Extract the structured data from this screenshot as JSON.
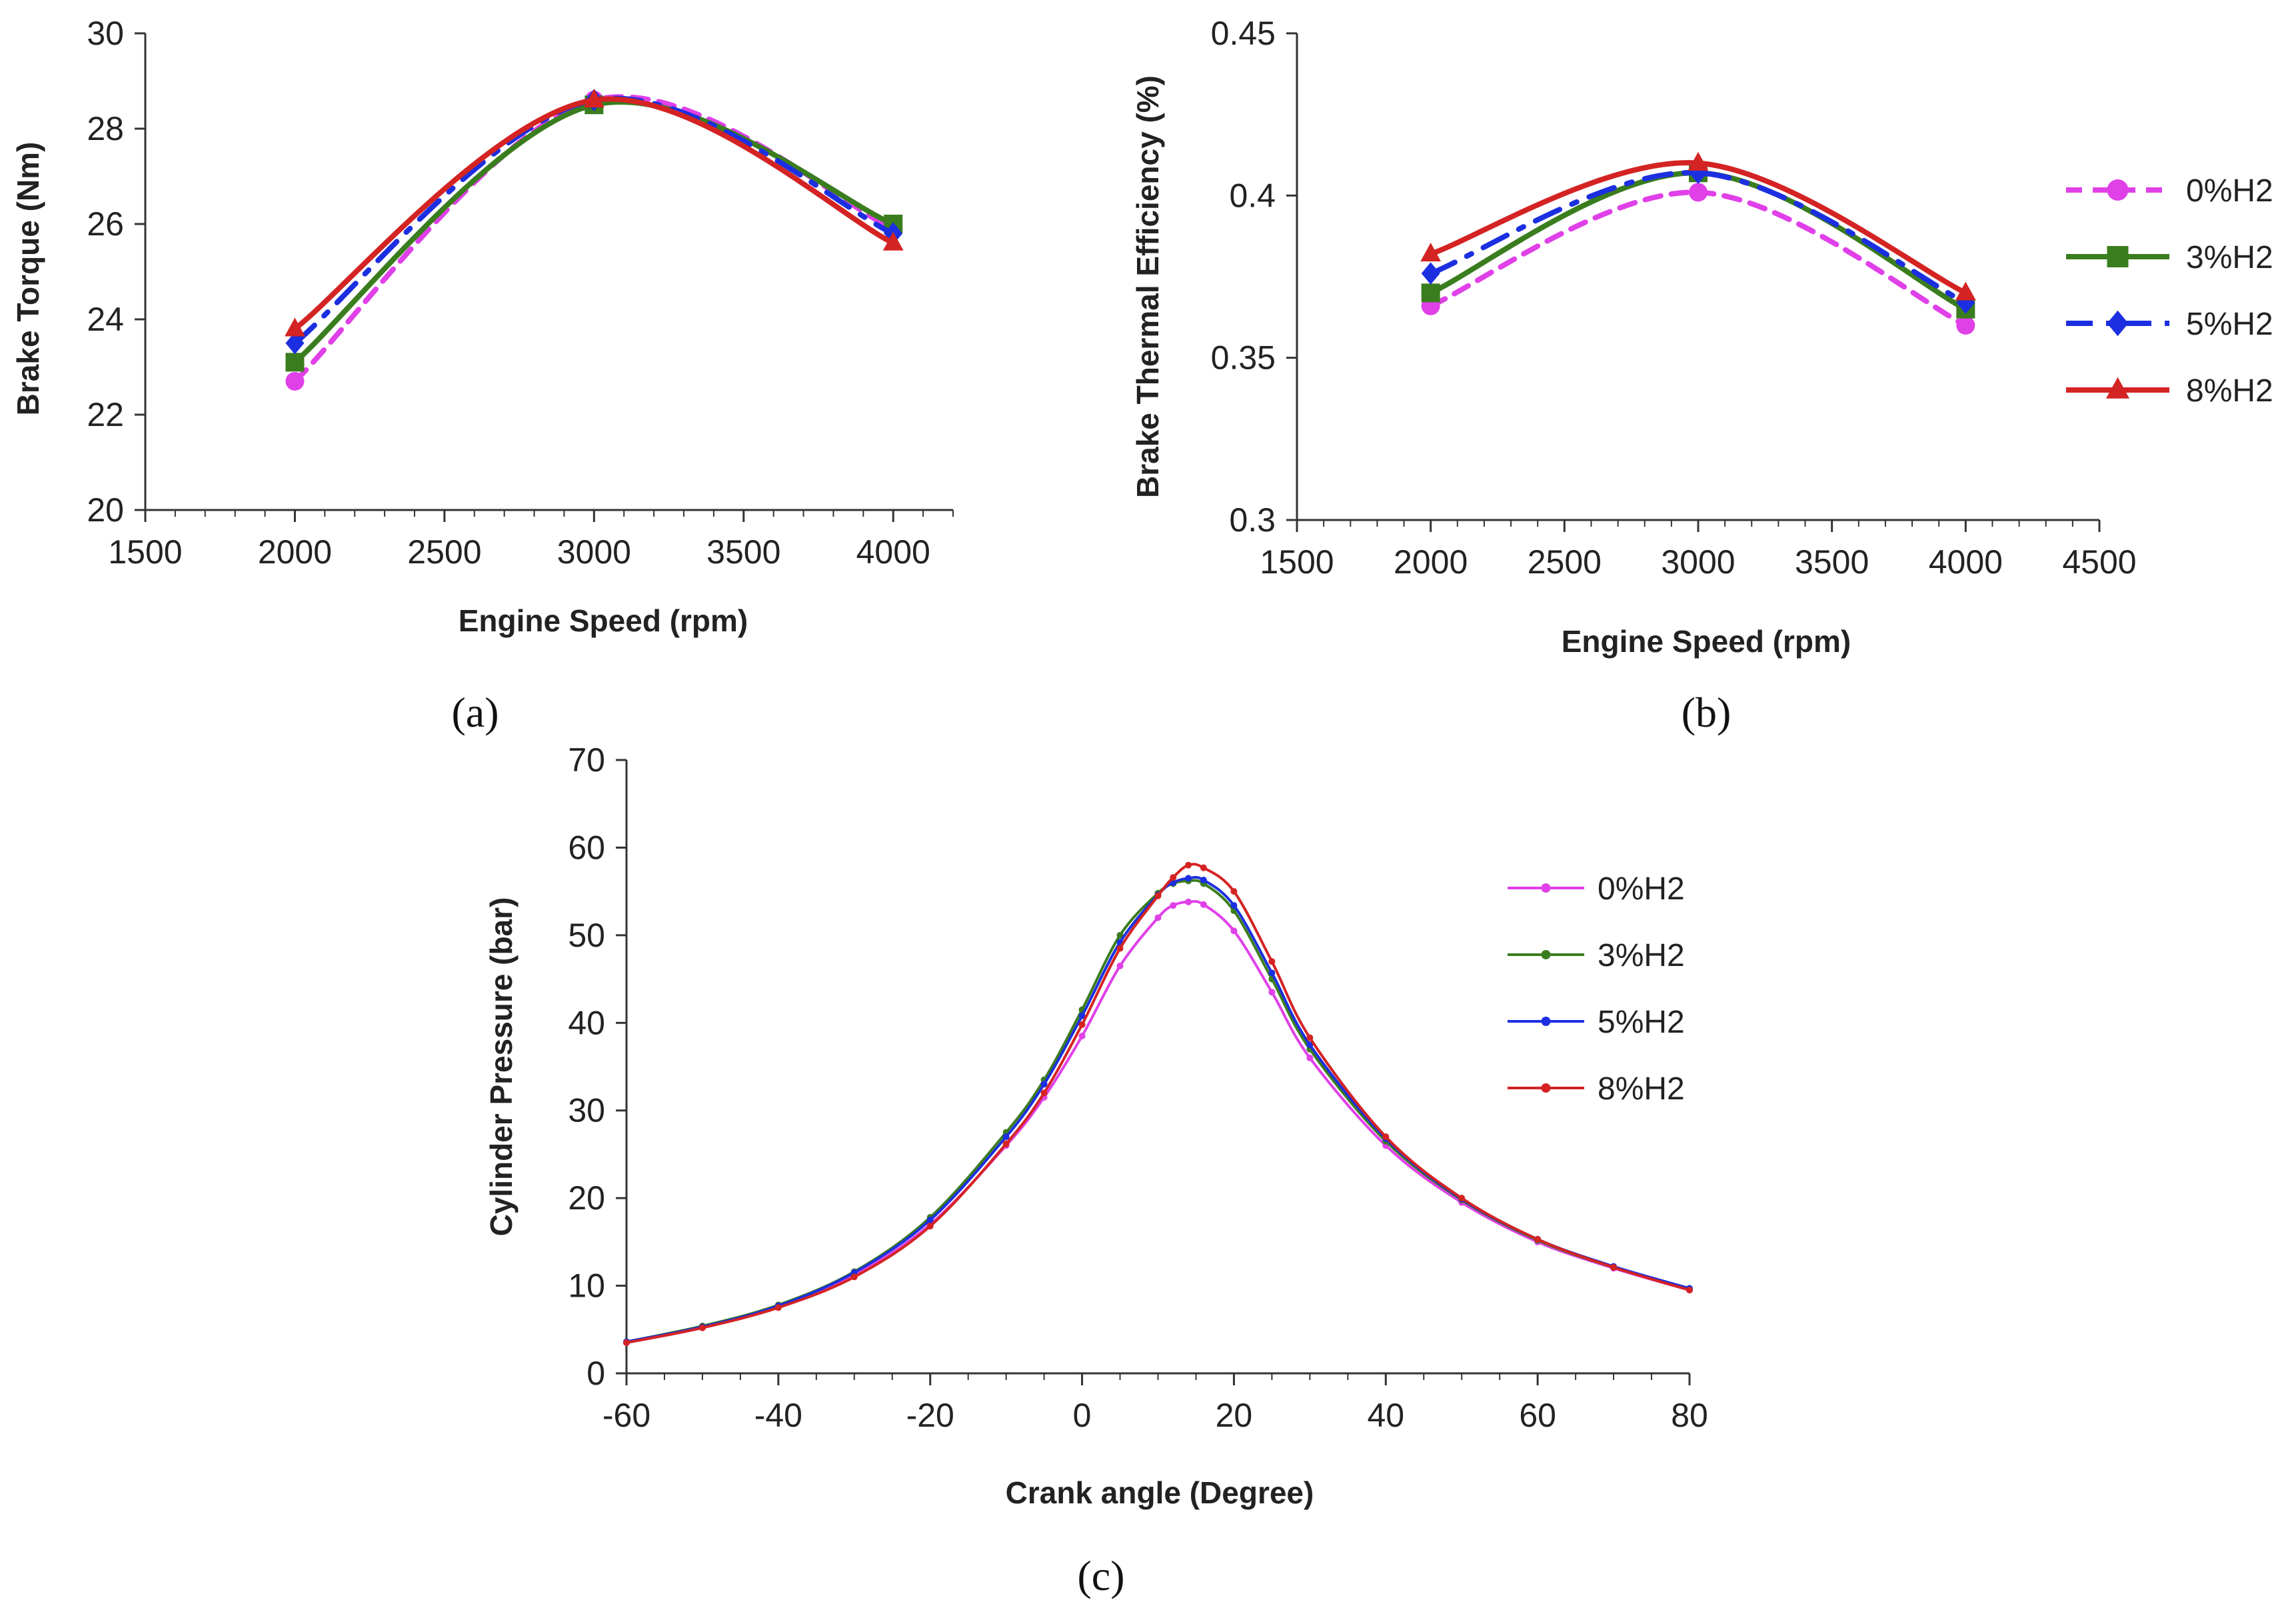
{
  "colors": {
    "h0": "#e040e8",
    "h3": "#3a7d1e",
    "h5": "#1c2fe0",
    "h8": "#d42323",
    "axis": "#333333"
  },
  "panels": {
    "a": "(a)",
    "b": "(b)",
    "c": "(c)"
  },
  "chart_data": [
    {
      "id": "a",
      "type": "line",
      "title": "",
      "xlabel": "Engine Speed (rpm)",
      "ylabel": "Brake Torque (Nm)",
      "xlim": [
        1500,
        4200
      ],
      "ylim": [
        20,
        30
      ],
      "xticks": [
        1500,
        2000,
        2500,
        3000,
        3500,
        4000
      ],
      "yticks": [
        20,
        22,
        24,
        26,
        28,
        30
      ],
      "x": [
        2000,
        3000,
        4000
      ],
      "series": [
        {
          "name": "0%H2",
          "values": [
            22.7,
            28.6,
            25.9
          ],
          "color_key": "h0",
          "marker": "circle",
          "dash": "dashed"
        },
        {
          "name": "3%H2",
          "values": [
            23.1,
            28.5,
            26.0
          ],
          "color_key": "h3",
          "marker": "square",
          "dash": "solid"
        },
        {
          "name": "5%H2",
          "values": [
            23.5,
            28.6,
            25.8
          ],
          "color_key": "h5",
          "marker": "diamond",
          "dash": "dashdot"
        },
        {
          "name": "8%H2",
          "values": [
            23.8,
            28.6,
            25.6
          ],
          "color_key": "h8",
          "marker": "triangle",
          "dash": "solid"
        }
      ]
    },
    {
      "id": "b",
      "type": "line",
      "title": "",
      "xlabel": "Engine Speed (rpm)",
      "ylabel": "Brake Thermal Efficiency (%)",
      "xlim": [
        1500,
        4500
      ],
      "ylim": [
        0.3,
        0.45
      ],
      "xticks": [
        1500,
        2000,
        2500,
        3000,
        3500,
        4000,
        4500
      ],
      "yticks": [
        0.3,
        0.35,
        0.4,
        0.45
      ],
      "x": [
        2000,
        3000,
        4000
      ],
      "series": [
        {
          "name": "0%H2",
          "values": [
            0.366,
            0.401,
            0.36
          ],
          "color_key": "h0",
          "marker": "circle",
          "dash": "dashed"
        },
        {
          "name": "3%H2",
          "values": [
            0.37,
            0.407,
            0.365
          ],
          "color_key": "h3",
          "marker": "square",
          "dash": "solid"
        },
        {
          "name": "5%H2",
          "values": [
            0.376,
            0.407,
            0.367
          ],
          "color_key": "h5",
          "marker": "diamond",
          "dash": "dashdot"
        },
        {
          "name": "8%H2",
          "values": [
            0.382,
            0.41,
            0.37
          ],
          "color_key": "h8",
          "marker": "triangle",
          "dash": "solid"
        }
      ],
      "legend": {
        "placement": "right",
        "entries": [
          "0%H2",
          "3%H2",
          "5%H2",
          "8%H2"
        ]
      }
    },
    {
      "id": "c",
      "type": "line",
      "title": "",
      "xlabel": "Crank angle (Degree)",
      "ylabel": "Cylinder Pressure (bar)",
      "xlim": [
        -60,
        80
      ],
      "ylim": [
        0,
        70
      ],
      "xticks": [
        -60,
        -40,
        -20,
        0,
        20,
        40,
        60,
        80
      ],
      "yticks": [
        0,
        10,
        20,
        30,
        40,
        50,
        60,
        70
      ],
      "x": [
        -60,
        -50,
        -40,
        -30,
        -20,
        -10,
        -5,
        0,
        5,
        10,
        12,
        14,
        16,
        20,
        25,
        30,
        40,
        50,
        60,
        70,
        80
      ],
      "series": [
        {
          "name": "0%H2",
          "values": [
            3.5,
            5.2,
            7.6,
            11.2,
            17.0,
            26.0,
            31.5,
            38.5,
            46.5,
            52.0,
            53.4,
            53.8,
            53.5,
            50.5,
            43.5,
            36.0,
            26.0,
            19.5,
            15.0,
            12.0,
            9.5
          ],
          "color_key": "h0"
        },
        {
          "name": "3%H2",
          "values": [
            3.6,
            5.4,
            7.8,
            11.6,
            17.8,
            27.5,
            33.5,
            41.5,
            50.0,
            54.8,
            55.9,
            56.2,
            55.9,
            52.8,
            45.0,
            37.0,
            26.5,
            19.8,
            15.2,
            12.1,
            9.6
          ],
          "color_key": "h3"
        },
        {
          "name": "5%H2",
          "values": [
            3.6,
            5.3,
            7.7,
            11.5,
            17.5,
            27.0,
            33.0,
            40.8,
            49.2,
            54.6,
            56.0,
            56.5,
            56.3,
            53.4,
            45.7,
            37.5,
            26.8,
            19.9,
            15.3,
            12.2,
            9.7
          ],
          "color_key": "h5"
        },
        {
          "name": "8%H2",
          "values": [
            3.5,
            5.2,
            7.5,
            11.0,
            16.8,
            26.2,
            32.0,
            39.8,
            48.5,
            54.5,
            56.6,
            58.0,
            57.7,
            55.0,
            47.0,
            38.3,
            27.0,
            20.0,
            15.3,
            12.1,
            9.5
          ],
          "color_key": "h8"
        }
      ],
      "legend": {
        "placement": "top-right",
        "entries": [
          "0%H2",
          "3%H2",
          "5%H2",
          "8%H2"
        ]
      }
    }
  ]
}
